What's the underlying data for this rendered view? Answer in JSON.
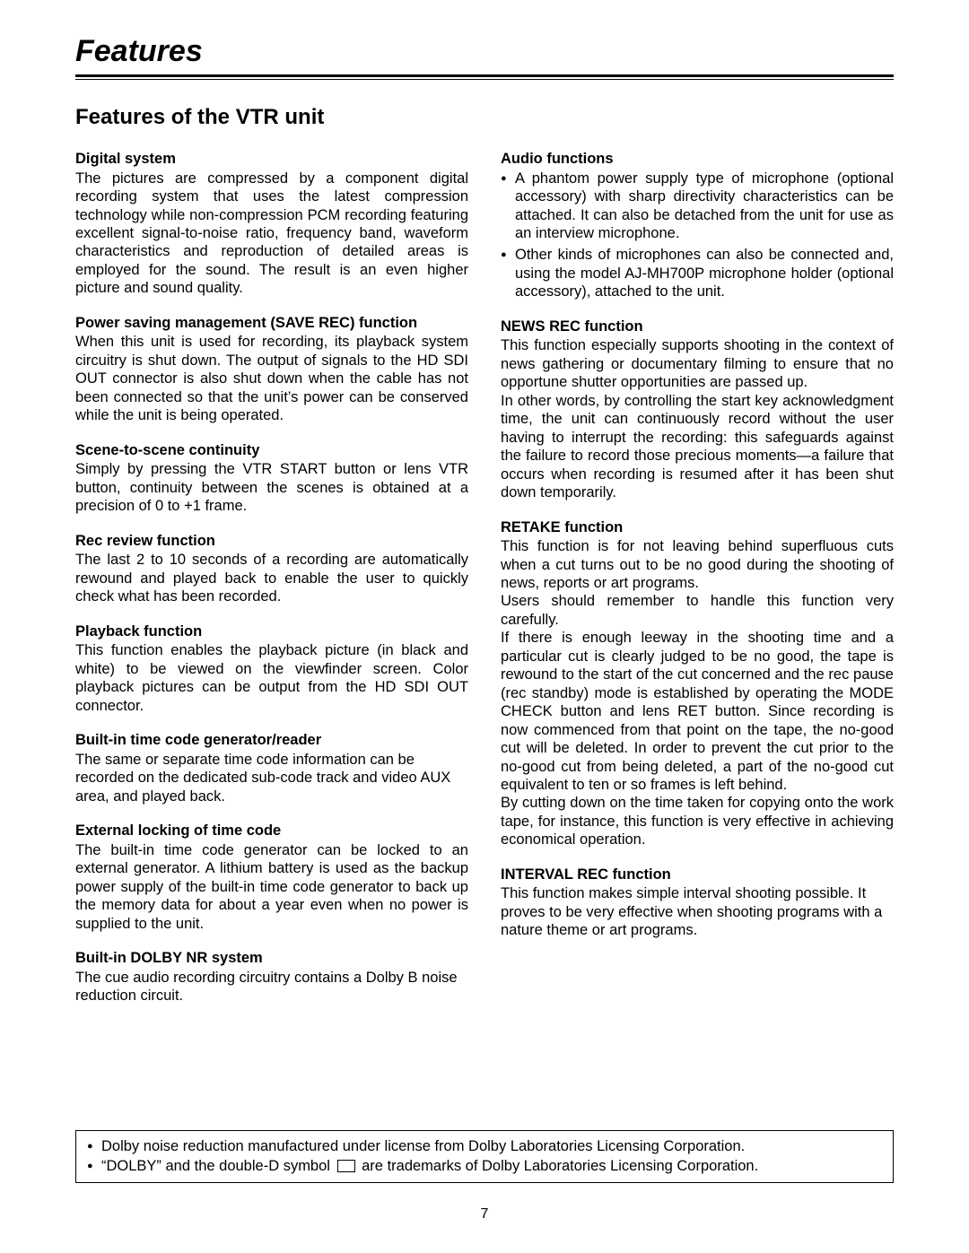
{
  "pageTitle": "Features",
  "sectionTitle": "Features of the VTR unit",
  "pageNumber": "7",
  "left": [
    {
      "title": "Digital system",
      "body": "The pictures are compressed by a component digital recording system that uses the latest compression technology while non-compression PCM recording featuring excellent signal-to-noise ratio, frequency band, waveform characteristics and reproduction of detailed areas is employed for the sound.  The result is an even higher picture and sound quality.",
      "justify": true
    },
    {
      "title": "Power saving management (SAVE REC) function",
      "body": "When this unit is used for recording, its playback system circuitry is shut down.  The output of signals to the HD SDI OUT connector is also shut down when the cable has not been connected so that the unit’s power can be conserved while the unit is being operated.",
      "justify": true
    },
    {
      "title": "Scene-to-scene continuity",
      "body": "Simply by pressing the VTR START button or lens VTR button, continuity between the scenes is obtained at a precision of 0 to +1 frame.",
      "justify": true
    },
    {
      "title": "Rec review function",
      "body": "The last 2 to 10 seconds of a recording are automatically rewound and played back to enable the user to quickly check what has been recorded.",
      "justify": true
    },
    {
      "title": "Playback function",
      "body": "This function enables the playback picture (in black and white) to be viewed on the viewfinder screen.  Color playback pictures can be output from the HD SDI OUT connector.",
      "justify": true
    },
    {
      "title": "Built-in time code generator/reader",
      "body": "The same or separate time code information can be recorded on the dedicated sub-code track and video AUX area, and played back.",
      "justify": false
    },
    {
      "title": "External locking of time code",
      "body": "The built-in time code generator can be locked to an external generator.  A lithium battery is used as the backup power supply of the built-in time code generator to back up the memory data for about a year even when no power is supplied to the unit.",
      "justify": true
    },
    {
      "title": "Built-in DOLBY NR system",
      "body": "The cue audio recording circuitry contains a Dolby B noise reduction circuit.",
      "justify": false
    }
  ],
  "right": [
    {
      "title": "Audio functions",
      "bullets": [
        "A phantom power supply type of microphone (optional accessory) with sharp directivity characteristics can be attached.  It can also be detached from the unit for use as an interview microphone.",
        "Other kinds of microphones can also be connected and, using the model AJ-MH700P microphone holder (optional accessory), attached to the unit."
      ]
    },
    {
      "title": "NEWS REC function",
      "paras": [
        "This function especially supports shooting in the context of news gathering or documentary filming to ensure that no opportune shutter opportunities are passed up.",
        "In other words, by controlling the start key acknowledgment time, the unit can continuously record without the user having to interrupt the recording: this safeguards against the failure to record those precious moments—a failure that occurs when recording is resumed after it has been shut down temporarily."
      ]
    },
    {
      "title": "RETAKE function",
      "paras": [
        "This function is for not leaving behind superfluous cuts when a cut turns out to be no good during the shooting of news, reports or art programs.",
        "Users should remember to handle this function very carefully.",
        "If there is enough leeway in the shooting time and a particular cut is clearly judged to be no good, the tape is rewound to the start of the cut concerned and the rec pause (rec standby) mode is established by operating the MODE CHECK button and lens RET button.  Since recording is now commenced from that point on the tape, the no-good cut will be deleted.  In order to prevent the cut prior to the no-good cut from being deleted, a part of the no-good cut equivalent to ten or so frames is left behind.",
        "By cutting down on the time taken for copying onto the work tape, for instance, this function is very effective in achieving economical operation."
      ]
    },
    {
      "title": "INTERVAL REC function",
      "paras_plain": [
        "This function makes simple interval shooting possible. It proves to be very effective when shooting programs with a nature theme or art programs."
      ]
    }
  ],
  "notice": {
    "line1": "Dolby noise reduction manufactured under license from Dolby Laboratories Licensing Corporation.",
    "line2_a": "“DOLBY” and the double-D symbol ",
    "line2_b": " are trademarks of Dolby Laboratories Licensing Corporation."
  }
}
